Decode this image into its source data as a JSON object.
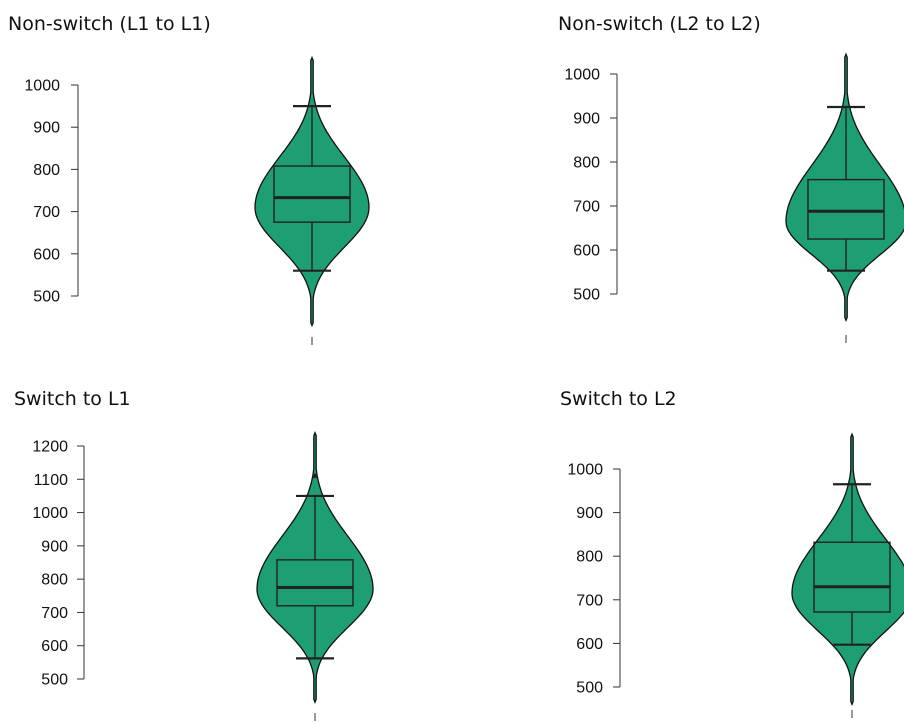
{
  "chart_data": [
    {
      "type": "violin",
      "title": "Non-switch (L1 to L1)",
      "ylim": [
        500,
        1000
      ],
      "yticks": [
        500,
        600,
        700,
        800,
        900,
        1000
      ],
      "color": "#1e9e73",
      "box": {
        "q1": 675,
        "median": 733,
        "q3": 808,
        "whisker_low": 560,
        "whisker_high": 950
      },
      "violin": {
        "min": 430,
        "max": 1065,
        "mode": 710
      },
      "outliers": []
    },
    {
      "type": "violin",
      "title": "Non-switch (L2 to L2)",
      "ylim": [
        500,
        1000
      ],
      "yticks": [
        500,
        600,
        700,
        800,
        900,
        1000
      ],
      "color": "#1e9e73",
      "box": {
        "q1": 625,
        "median": 688,
        "q3": 760,
        "whisker_low": 553,
        "whisker_high": 925
      },
      "violin": {
        "min": 440,
        "max": 1045,
        "mode": 665
      },
      "outliers": []
    },
    {
      "type": "violin",
      "title": "Switch to L1",
      "ylim": [
        500,
        1200
      ],
      "yticks": [
        500,
        600,
        700,
        800,
        900,
        1000,
        1100,
        1200
      ],
      "color": "#1e9e73",
      "box": {
        "q1": 720,
        "median": 775,
        "q3": 858,
        "whisker_low": 562,
        "whisker_high": 1050
      },
      "violin": {
        "min": 430,
        "max": 1240,
        "mode": 770
      },
      "outliers": [
        1110
      ]
    },
    {
      "type": "violin",
      "title": "Switch to L2",
      "ylim": [
        500,
        1000
      ],
      "yticks": [
        500,
        600,
        700,
        800,
        900,
        1000
      ],
      "color": "#1e9e73",
      "box": {
        "q1": 672,
        "median": 730,
        "q3": 832,
        "whisker_low": 597,
        "whisker_high": 965
      },
      "violin": {
        "min": 460,
        "max": 1080,
        "mode": 715
      },
      "outliers": []
    }
  ]
}
